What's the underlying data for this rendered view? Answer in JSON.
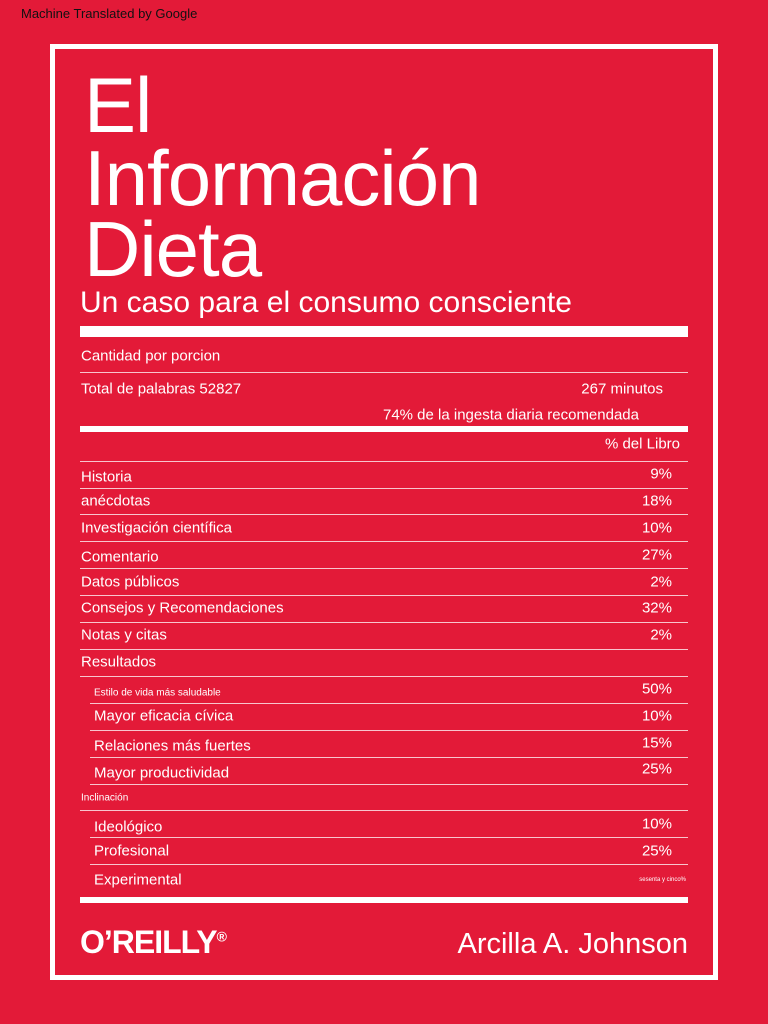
{
  "overlay_label": "Machine Translated by Google",
  "title_lines": [
    "El",
    "Información",
    "Dieta"
  ],
  "subtitle": "Un caso para el consumo consciente",
  "serving": "Cantidad por porcion",
  "total_words": "Total de palabras 52827",
  "minutes": "267 minutos",
  "daily_intake": "74% de la ingesta diaria recomendada",
  "percent_header": "% del Libro",
  "rows": [
    {
      "label": "Historia",
      "value": "9%"
    },
    {
      "label": "anécdotas",
      "value": "18%"
    },
    {
      "label": "Investigación científica",
      "value": "10%"
    },
    {
      "label": "Comentario",
      "value": "27%"
    },
    {
      "label": "Datos públicos",
      "value": "2%"
    },
    {
      "label": "Consejos y Recomendaciones",
      "value": "32%"
    },
    {
      "label": "Notas y citas",
      "value": "2%"
    },
    {
      "label": "Resultados",
      "value": ""
    },
    {
      "label": "Estilo de vida más saludable",
      "value": "50%"
    },
    {
      "label": "Mayor eficacia cívica",
      "value": "10%"
    },
    {
      "label": "Relaciones más fuertes",
      "value": "15%"
    },
    {
      "label": "Mayor productividad",
      "value": "25%"
    },
    {
      "label": "Inclinación",
      "value": ""
    },
    {
      "label": "Ideológico",
      "value": "10%"
    },
    {
      "label": "Profesional",
      "value": "25%"
    },
    {
      "label": "Experimental",
      "value": "sesenta y cinco%"
    }
  ],
  "publisher": "O’REILLY",
  "registered_mark": "®",
  "author": "Arcilla A. Johnson",
  "colors": {
    "background": "#e31a38",
    "foreground": "#ffffff"
  }
}
